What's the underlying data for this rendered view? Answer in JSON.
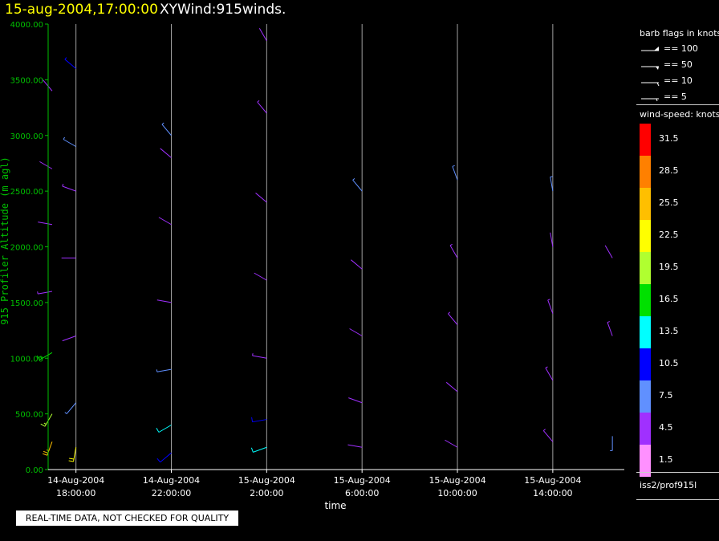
{
  "header": {
    "datetime": "15-aug-2004,17:00:00",
    "product": "XYWind:915winds."
  },
  "legend": {
    "flags_title": "barb flags in knots",
    "flags": [
      {
        "value": 100,
        "label": "== 100"
      },
      {
        "value": 50,
        "label": "== 50"
      },
      {
        "value": 10,
        "label": "== 10"
      },
      {
        "value": 5,
        "label": "== 5"
      }
    ],
    "speed_title": "wind-speed: knots",
    "speed_bins": [
      {
        "label": "31.5",
        "color": "#ff0000"
      },
      {
        "label": "28.5",
        "color": "#ff8000"
      },
      {
        "label": "25.5",
        "color": "#ffbf00"
      },
      {
        "label": "22.5",
        "color": "#ffff00"
      },
      {
        "label": "19.5",
        "color": "#b0ff30"
      },
      {
        "label": "16.5",
        "color": "#00e000"
      },
      {
        "label": "13.5",
        "color": "#00ffff"
      },
      {
        "label": "10.5",
        "color": "#0000ff"
      },
      {
        "label": "7.5",
        "color": "#6090ff"
      },
      {
        "label": "4.5",
        "color": "#a030ff"
      },
      {
        "label": "1.5",
        "color": "#ff90ff"
      }
    ],
    "source": "iss2/prof915l"
  },
  "footer": {
    "qc_notice": "REAL-TIME DATA, NOT CHECKED FOR QUALITY"
  },
  "chart_data": {
    "type": "wind-barb time-height",
    "title": "XYWind:915winds.",
    "xlabel": "time",
    "ylabel": "915 Profiler Altitude (m agl)",
    "xlim": [
      "14-Aug-2004 16:50:00",
      "15-Aug-2004 17:00:00"
    ],
    "ylim": [
      0,
      4000
    ],
    "yticks": [
      0,
      500,
      1000,
      1500,
      2000,
      2500,
      3000,
      3500,
      4000
    ],
    "ytick_labels": [
      "0.00",
      "500.00",
      "1000.00",
      "1500.00",
      "2000.00",
      "2500.00",
      "3000.00",
      "3500.00",
      "4000.00"
    ],
    "xticks": [
      {
        "time": "14-Aug-2004 18:00:00",
        "line1": "14-Aug-2004",
        "line2": "18:00:00"
      },
      {
        "time": "14-Aug-2004 22:00:00",
        "line1": "14-Aug-2004",
        "line2": "22:00:00"
      },
      {
        "time": "15-Aug-2004 02:00:00",
        "line1": "15-Aug-2004",
        "line2": "2:00:00"
      },
      {
        "time": "15-Aug-2004 06:00:00",
        "line1": "15-Aug-2004",
        "line2": "6:00:00"
      },
      {
        "time": "15-Aug-2004 10:00:00",
        "line1": "15-Aug-2004",
        "line2": "10:00:00"
      },
      {
        "time": "15-Aug-2004 14:00:00",
        "line1": "15-Aug-2004",
        "line2": "14:00:00"
      }
    ],
    "grid": "vertical lines at each time tick",
    "speed_units": "knots",
    "profile_interval_minutes": 30,
    "wind_profiles": [
      {
        "time": "14-Aug-2004 17:00:00",
        "levels": [
          {
            "alt": 250,
            "dir": 200,
            "spd": 25
          },
          {
            "alt": 500,
            "dir": 210,
            "spd": 18
          },
          {
            "alt": 1050,
            "dir": 240,
            "spd": 17
          },
          {
            "alt": 1600,
            "dir": 260,
            "spd": 5
          },
          {
            "alt": 2200,
            "dir": 280,
            "spd": 4
          },
          {
            "alt": 2700,
            "dir": 300,
            "spd": 4
          },
          {
            "alt": 3400,
            "dir": 320,
            "spd": 3
          }
        ]
      },
      {
        "time": "14-Aug-2004 18:00:00",
        "levels": [
          {
            "alt": 200,
            "dir": 190,
            "spd": 22
          },
          {
            "alt": 600,
            "dir": 220,
            "spd": 8
          },
          {
            "alt": 1200,
            "dir": 250,
            "spd": 4
          },
          {
            "alt": 1900,
            "dir": 270,
            "spd": 3
          },
          {
            "alt": 2500,
            "dir": 290,
            "spd": 5
          },
          {
            "alt": 2900,
            "dir": 300,
            "spd": 8
          },
          {
            "alt": 3600,
            "dir": 310,
            "spd": 9
          }
        ]
      },
      {
        "time": "14-Aug-2004 22:00:00",
        "levels": [
          {
            "alt": 150,
            "dir": 230,
            "spd": 11
          },
          {
            "alt": 400,
            "dir": 240,
            "spd": 12
          },
          {
            "alt": 900,
            "dir": 260,
            "spd": 6
          },
          {
            "alt": 1500,
            "dir": 280,
            "spd": 4
          },
          {
            "alt": 2200,
            "dir": 300,
            "spd": 3
          },
          {
            "alt": 2800,
            "dir": 310,
            "spd": 4
          },
          {
            "alt": 3000,
            "dir": 320,
            "spd": 7
          }
        ]
      },
      {
        "time": "15-Aug-2004 02:00:00",
        "levels": [
          {
            "alt": 200,
            "dir": 250,
            "spd": 14
          },
          {
            "alt": 450,
            "dir": 260,
            "spd": 10
          },
          {
            "alt": 1000,
            "dir": 280,
            "spd": 5
          },
          {
            "alt": 1700,
            "dir": 300,
            "spd": 3
          },
          {
            "alt": 2400,
            "dir": 310,
            "spd": 4
          },
          {
            "alt": 3200,
            "dir": 320,
            "spd": 5
          },
          {
            "alt": 3850,
            "dir": 330,
            "spd": 4
          }
        ]
      },
      {
        "time": "15-Aug-2004 06:00:00",
        "levels": [
          {
            "alt": 200,
            "dir": 280,
            "spd": 4
          },
          {
            "alt": 600,
            "dir": 290,
            "spd": 3
          },
          {
            "alt": 1200,
            "dir": 300,
            "spd": 4
          },
          {
            "alt": 1800,
            "dir": 310,
            "spd": 4
          },
          {
            "alt": 2500,
            "dir": 320,
            "spd": 6
          }
        ]
      },
      {
        "time": "15-Aug-2004 10:00:00",
        "levels": [
          {
            "alt": 200,
            "dir": 300,
            "spd": 3
          },
          {
            "alt": 700,
            "dir": 310,
            "spd": 4
          },
          {
            "alt": 1300,
            "dir": 320,
            "spd": 5
          },
          {
            "alt": 1900,
            "dir": 330,
            "spd": 5
          },
          {
            "alt": 2600,
            "dir": 340,
            "spd": 8
          }
        ]
      },
      {
        "time": "15-Aug-2004 14:00:00",
        "levels": [
          {
            "alt": 250,
            "dir": 320,
            "spd": 5
          },
          {
            "alt": 800,
            "dir": 330,
            "spd": 5
          },
          {
            "alt": 1400,
            "dir": 340,
            "spd": 5
          },
          {
            "alt": 2000,
            "dir": 350,
            "spd": 4
          },
          {
            "alt": 2500,
            "dir": 350,
            "spd": 7
          }
        ]
      },
      {
        "time": "15-Aug-2004 16:30:00",
        "levels": [
          {
            "alt": 300,
            "dir": 180,
            "spd": 8
          },
          {
            "alt": 1200,
            "dir": 340,
            "spd": 5
          },
          {
            "alt": 1900,
            "dir": 330,
            "spd": 4
          }
        ]
      }
    ]
  }
}
